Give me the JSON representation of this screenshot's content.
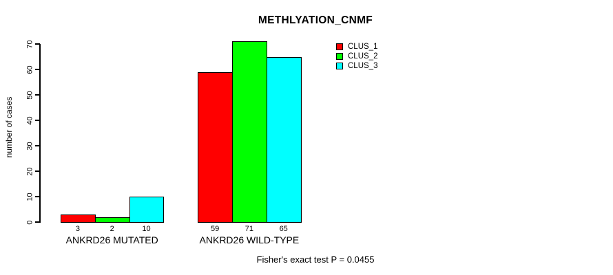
{
  "chart_data": {
    "type": "bar",
    "title": "METHLYATION_CNMF",
    "xlabel": "",
    "ylabel": "number of cases",
    "ylim": [
      0,
      70
    ],
    "yticks": [
      0,
      10,
      20,
      30,
      40,
      50,
      60,
      70
    ],
    "grid": false,
    "legend_position": "topright",
    "categories": [
      "ANKRD26 MUTATED",
      "ANKRD26 WILD-TYPE"
    ],
    "series": [
      {
        "name": "CLUS_1",
        "color": "#ff0000",
        "values": [
          3,
          59
        ]
      },
      {
        "name": "CLUS_2",
        "color": "#00ff00",
        "values": [
          2,
          71
        ]
      },
      {
        "name": "CLUS_3",
        "color": "#00ffff",
        "values": [
          10,
          65
        ]
      }
    ],
    "bar_value_labels": [
      [
        3,
        2,
        10
      ],
      [
        59,
        71,
        65
      ]
    ],
    "annotation": "Fisher's exact test P = 0.0455",
    "colors": {
      "background": "#ffffff",
      "axis": "#000000",
      "text": "#000000"
    }
  }
}
